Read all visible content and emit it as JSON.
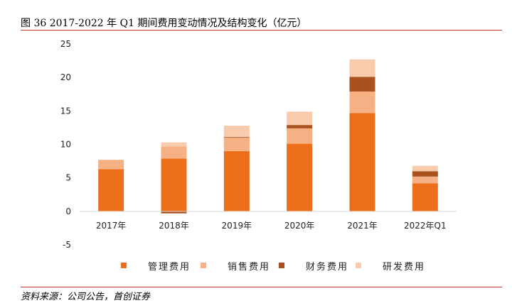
{
  "figure": {
    "title": "图 36 2017-2022 年 Q1 期间费用变动情况及结构变化（亿元）",
    "source": "资料来源：公司公告，首创证券"
  },
  "chart_data": {
    "type": "bar",
    "stacked": true,
    "title": "",
    "xlabel": "",
    "ylabel": "",
    "categories": [
      "2017年",
      "2018年",
      "2019年",
      "2020年",
      "2021年",
      "2022年Q1"
    ],
    "ylim": [
      -5,
      25
    ],
    "yticks": [
      -5,
      0,
      5,
      10,
      15,
      20,
      25
    ],
    "grid": false,
    "legend_position": "bottom",
    "series": [
      {
        "name": "管理费用",
        "color": "#ec6f1c",
        "values": [
          6.3,
          7.9,
          9.0,
          10.1,
          14.7,
          4.2
        ]
      },
      {
        "name": "销售费用",
        "color": "#f5b183",
        "values": [
          1.4,
          1.8,
          2.0,
          2.3,
          3.2,
          1.0
        ]
      },
      {
        "name": "财务费用",
        "color": "#a9511f",
        "values": [
          0.0,
          -0.3,
          0.1,
          0.5,
          2.2,
          0.8
        ]
      },
      {
        "name": "研发费用",
        "color": "#f9cbad",
        "values": [
          0.0,
          0.6,
          1.7,
          2.0,
          2.6,
          0.8
        ]
      }
    ]
  }
}
